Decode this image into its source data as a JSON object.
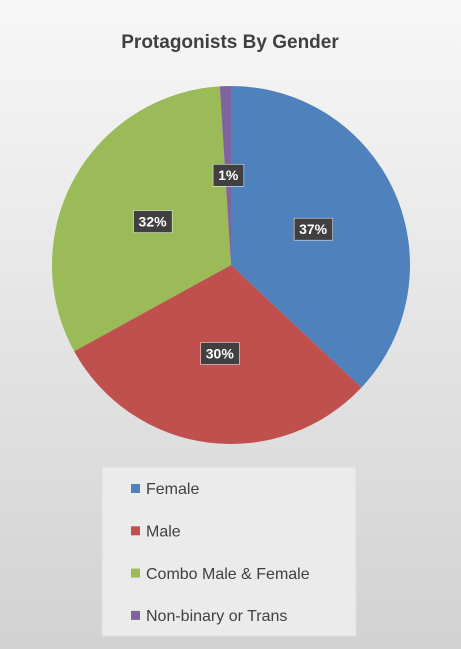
{
  "chart_data": {
    "type": "pie",
    "title": "Protagonists By Gender",
    "categories": [
      "Female",
      "Male",
      "Combo Male & Female",
      "Non-binary or Trans"
    ],
    "values": [
      37,
      30,
      32,
      1
    ],
    "value_labels": [
      "37%",
      "30%",
      "32%",
      "1%"
    ],
    "colors": [
      "#4f81bd",
      "#c0504d",
      "#9bbb59",
      "#8064a2"
    ],
    "legend": "bottom"
  }
}
